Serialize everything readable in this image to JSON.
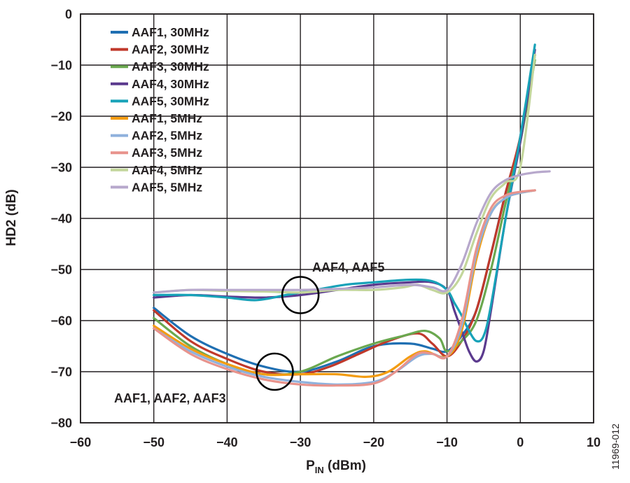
{
  "chart_data": {
    "type": "line",
    "title": "",
    "xlabel": {
      "main": "P",
      "sub": "IN",
      "rest": " (dBm)"
    },
    "ylabel": "HD2 (dB)",
    "xlim": [
      -60,
      10
    ],
    "ylim": [
      -80,
      0
    ],
    "x_ticks": [
      -60,
      -50,
      -40,
      -30,
      -20,
      -10,
      0,
      10
    ],
    "y_ticks": [
      0,
      -10,
      -20,
      -30,
      -40,
      -50,
      -60,
      -70,
      -80
    ],
    "x_tick_labels": [
      "−60",
      "−50",
      "−40",
      "−30",
      "−20",
      "−10",
      "0",
      "10"
    ],
    "y_tick_labels": [
      "0",
      "−10",
      "−20",
      "−30",
      "−40",
      "−50",
      "−60",
      "−70",
      "−80"
    ],
    "grid": true,
    "legend_position": "top-left",
    "figure_id": "11969-012",
    "annotations": [
      {
        "text": "AAF4, AAF5",
        "circle_center": [
          -30,
          -55
        ]
      },
      {
        "text": "AAF1, AAF2, AAF3",
        "circle_center": [
          -33.5,
          -70
        ]
      }
    ],
    "series": [
      {
        "name": "AAF1, 30MHz",
        "color": "#1f6fb2",
        "points": [
          [
            -50,
            -57.5
          ],
          [
            -45,
            -63
          ],
          [
            -40,
            -66.5
          ],
          [
            -35,
            -69
          ],
          [
            -30,
            -70
          ],
          [
            -25,
            -68
          ],
          [
            -20,
            -65
          ],
          [
            -15,
            -64.5
          ],
          [
            -12,
            -65.5
          ],
          [
            -10,
            -66
          ],
          [
            -8,
            -63
          ],
          [
            -6,
            -58
          ],
          [
            -4,
            -47
          ],
          [
            -2,
            -35
          ],
          [
            0,
            -25
          ],
          [
            2,
            -8
          ]
        ]
      },
      {
        "name": "AAF2, 30MHz",
        "color": "#c0392b",
        "points": [
          [
            -50,
            -58
          ],
          [
            -45,
            -64
          ],
          [
            -40,
            -67.5
          ],
          [
            -35,
            -70
          ],
          [
            -30,
            -70.5
          ],
          [
            -26,
            -69
          ],
          [
            -22,
            -66.5
          ],
          [
            -18,
            -64
          ],
          [
            -14,
            -62.5
          ],
          [
            -12,
            -64.5
          ],
          [
            -10,
            -67
          ],
          [
            -8,
            -64
          ],
          [
            -6,
            -58
          ],
          [
            -4,
            -47
          ],
          [
            -2,
            -35
          ],
          [
            0,
            -24
          ],
          [
            2,
            -8
          ]
        ]
      },
      {
        "name": "AAF3, 30MHz",
        "color": "#6aa84f",
        "points": [
          [
            -50,
            -59.5
          ],
          [
            -45,
            -65
          ],
          [
            -40,
            -68.5
          ],
          [
            -35,
            -70.5
          ],
          [
            -30,
            -70
          ],
          [
            -25,
            -67
          ],
          [
            -20,
            -64.5
          ],
          [
            -16,
            -63
          ],
          [
            -13,
            -62
          ],
          [
            -11,
            -63.5
          ],
          [
            -10,
            -66
          ],
          [
            -8,
            -64
          ],
          [
            -6,
            -60
          ],
          [
            -4,
            -50
          ],
          [
            -2,
            -37
          ],
          [
            0,
            -25
          ],
          [
            2,
            -9
          ]
        ]
      },
      {
        "name": "AAF4, 30MHz",
        "color": "#5b3a8e",
        "points": [
          [
            -50,
            -55.5
          ],
          [
            -45,
            -55
          ],
          [
            -40,
            -55.3
          ],
          [
            -35,
            -55.5
          ],
          [
            -30,
            -55
          ],
          [
            -25,
            -54
          ],
          [
            -20,
            -53
          ],
          [
            -15,
            -52.5
          ],
          [
            -12,
            -52.5
          ],
          [
            -10,
            -54
          ],
          [
            -9,
            -58
          ],
          [
            -8,
            -62
          ],
          [
            -7,
            -66
          ],
          [
            -6,
            -68
          ],
          [
            -5,
            -66
          ],
          [
            -4,
            -58
          ],
          [
            -2,
            -40
          ],
          [
            0,
            -25
          ],
          [
            2,
            -7
          ]
        ]
      },
      {
        "name": "AAF5, 30MHz",
        "color": "#17a2b8",
        "points": [
          [
            -50,
            -55
          ],
          [
            -45,
            -55
          ],
          [
            -40,
            -55.5
          ],
          [
            -36,
            -56
          ],
          [
            -32,
            -55
          ],
          [
            -28,
            -54
          ],
          [
            -24,
            -53
          ],
          [
            -20,
            -52.5
          ],
          [
            -15,
            -52
          ],
          [
            -12,
            -52.3
          ],
          [
            -10,
            -54
          ],
          [
            -9,
            -56.5
          ],
          [
            -8,
            -59
          ],
          [
            -7,
            -62
          ],
          [
            -6,
            -64
          ],
          [
            -5,
            -63
          ],
          [
            -4,
            -57
          ],
          [
            -2,
            -40
          ],
          [
            0,
            -24
          ],
          [
            2,
            -6
          ]
        ]
      },
      {
        "name": "AAF1, 5MHz",
        "color": "#f39c12",
        "points": [
          [
            -50,
            -61
          ],
          [
            -45,
            -65.5
          ],
          [
            -40,
            -68.5
          ],
          [
            -35,
            -70.5
          ],
          [
            -30,
            -70.5
          ],
          [
            -25,
            -70.5
          ],
          [
            -21,
            -71
          ],
          [
            -18,
            -70
          ],
          [
            -15,
            -67
          ],
          [
            -13,
            -66
          ],
          [
            -10,
            -67
          ],
          [
            -8,
            -62
          ],
          [
            -6,
            -48
          ],
          [
            -4,
            -39
          ],
          [
            -2,
            -36
          ],
          [
            0,
            -35
          ],
          [
            2,
            -34.5
          ]
        ]
      },
      {
        "name": "AAF2, 5MHz",
        "color": "#8fb1dc",
        "points": [
          [
            -50,
            -61.5
          ],
          [
            -45,
            -66
          ],
          [
            -40,
            -69
          ],
          [
            -35,
            -71
          ],
          [
            -30,
            -72
          ],
          [
            -25,
            -72.5
          ],
          [
            -20,
            -72
          ],
          [
            -17,
            -70
          ],
          [
            -14,
            -67
          ],
          [
            -12,
            -66.5
          ],
          [
            -10,
            -67
          ],
          [
            -8,
            -61
          ],
          [
            -6,
            -47
          ],
          [
            -4,
            -39
          ],
          [
            -2,
            -36
          ],
          [
            0,
            -35
          ],
          [
            2,
            -34.5
          ]
        ]
      },
      {
        "name": "AAF3, 5MHz",
        "color": "#e8938c",
        "points": [
          [
            -50,
            -61.5
          ],
          [
            -45,
            -66.5
          ],
          [
            -40,
            -69.5
          ],
          [
            -35,
            -71.5
          ],
          [
            -30,
            -72.5
          ],
          [
            -25,
            -72.7
          ],
          [
            -20,
            -72.3
          ],
          [
            -17,
            -70
          ],
          [
            -14,
            -66.5
          ],
          [
            -12,
            -66.5
          ],
          [
            -10,
            -67
          ],
          [
            -8,
            -60
          ],
          [
            -6,
            -46
          ],
          [
            -4,
            -38
          ],
          [
            -2,
            -35.5
          ],
          [
            0,
            -34.8
          ],
          [
            2,
            -34.5
          ]
        ]
      },
      {
        "name": "AAF4, 5MHz",
        "color": "#c3d69b",
        "points": [
          [
            -50,
            -54.5
          ],
          [
            -45,
            -54
          ],
          [
            -40,
            -54.2
          ],
          [
            -35,
            -54.3
          ],
          [
            -30,
            -54.5
          ],
          [
            -25,
            -54
          ],
          [
            -20,
            -54
          ],
          [
            -16,
            -53.5
          ],
          [
            -14,
            -53
          ],
          [
            -12,
            -54
          ],
          [
            -10,
            -54.5
          ],
          [
            -8,
            -51
          ],
          [
            -6,
            -43
          ],
          [
            -4,
            -36
          ],
          [
            -2,
            -33
          ],
          [
            0,
            -30
          ],
          [
            2,
            -8
          ]
        ]
      },
      {
        "name": "AAF5, 5MHz",
        "color": "#b7a8cc",
        "points": [
          [
            -50,
            -54.5
          ],
          [
            -45,
            -54
          ],
          [
            -40,
            -54
          ],
          [
            -35,
            -54
          ],
          [
            -30,
            -54
          ],
          [
            -25,
            -53.8
          ],
          [
            -20,
            -53.5
          ],
          [
            -15,
            -53
          ],
          [
            -12,
            -53.5
          ],
          [
            -10,
            -54
          ],
          [
            -8,
            -49
          ],
          [
            -6,
            -41
          ],
          [
            -4,
            -35
          ],
          [
            -2,
            -32.5
          ],
          [
            0,
            -31.5
          ],
          [
            2,
            -31
          ],
          [
            4,
            -30.8
          ]
        ]
      }
    ]
  }
}
